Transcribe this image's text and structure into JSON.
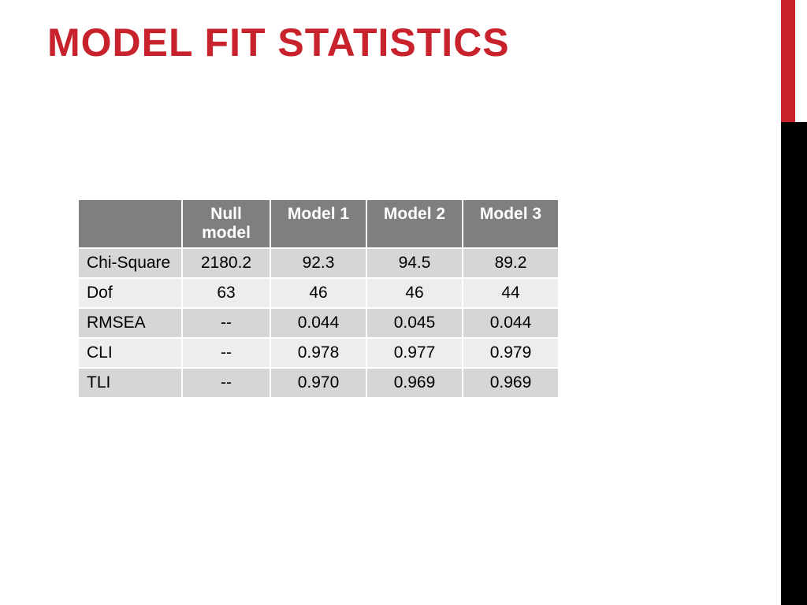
{
  "title": "MODEL FIT STATISTICS",
  "accent": {
    "red": "#c8232c",
    "black": "#000000"
  },
  "table": {
    "header_bg": "#7f7f7f",
    "header_fg": "#ffffff",
    "row_odd_bg": "#d6d6d6",
    "row_even_bg": "#ededed",
    "cell_fg": "#000000",
    "border_color": "#ffffff",
    "font_size_pt": 16,
    "columns": [
      "",
      "Null model",
      "Model 1",
      "Model 2",
      "Model 3"
    ],
    "rows": [
      {
        "label": "Chi-Square",
        "values": [
          "2180.2",
          "92.3",
          "94.5",
          "89.2"
        ]
      },
      {
        "label": "Dof",
        "values": [
          "63",
          "46",
          "46",
          "44"
        ]
      },
      {
        "label": "RMSEA",
        "values": [
          "--",
          "0.044",
          "0.045",
          "0.044"
        ]
      },
      {
        "label": "CLI",
        "values": [
          "--",
          "0.978",
          "0.977",
          "0.979"
        ]
      },
      {
        "label": "TLI",
        "values": [
          "--",
          "0.970",
          "0.969",
          "0.969"
        ]
      }
    ]
  }
}
